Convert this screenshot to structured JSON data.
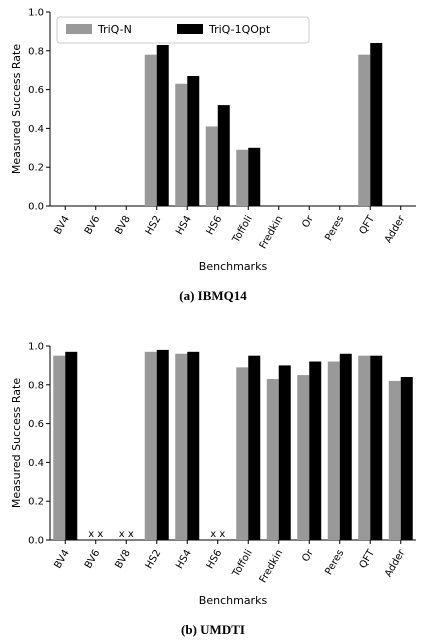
{
  "colors": {
    "triq_n": "#999999",
    "triq_1qopt": "#000000"
  },
  "chart_data": [
    {
      "type": "bar",
      "caption": "(a) IBMQ14",
      "xlabel": "Benchmarks",
      "ylabel": "Measured Success Rate",
      "ylim": [
        0,
        1.0
      ],
      "yticks": [
        "0.0",
        "0.2",
        "0.4",
        "0.6",
        "0.8",
        "1.0"
      ],
      "legend": {
        "placement": "top-left"
      },
      "categories": [
        "BV4",
        "BV6",
        "BV8",
        "HS2",
        "HS4",
        "HS6",
        "Toffoli",
        "Fredkin",
        "Or",
        "Peres",
        "QFT",
        "Adder"
      ],
      "series": [
        {
          "name": "TriQ-N",
          "values": [
            0,
            0,
            0,
            0.78,
            0.63,
            0.41,
            0.29,
            0,
            0,
            0,
            0.78,
            0
          ]
        },
        {
          "name": "TriQ-1QOpt",
          "values": [
            0,
            0,
            0,
            0.83,
            0.67,
            0.52,
            0.3,
            0,
            0,
            0,
            0.84,
            0
          ]
        }
      ],
      "markers": []
    },
    {
      "type": "bar",
      "caption": "(b) UMDTI",
      "xlabel": "Benchmarks",
      "ylabel": "Measured Success Rate",
      "ylim": [
        0,
        1.0
      ],
      "yticks": [
        "0.0",
        "0.2",
        "0.4",
        "0.6",
        "0.8",
        "1.0"
      ],
      "categories": [
        "BV4",
        "BV6",
        "BV8",
        "HS2",
        "HS4",
        "HS6",
        "Toffoli",
        "Fredkin",
        "Or",
        "Peres",
        "QFT",
        "Adder"
      ],
      "series": [
        {
          "name": "TriQ-N",
          "values": [
            0.95,
            null,
            null,
            0.97,
            0.96,
            null,
            0.89,
            0.83,
            0.85,
            0.92,
            0.95,
            0.82
          ]
        },
        {
          "name": "TriQ-1QOpt",
          "values": [
            0.97,
            null,
            null,
            0.98,
            0.97,
            null,
            0.95,
            0.9,
            0.92,
            0.96,
            0.95,
            0.84
          ]
        }
      ],
      "markers": [
        {
          "category": "BV6",
          "text": "x x"
        },
        {
          "category": "BV8",
          "text": "x x"
        },
        {
          "category": "HS6",
          "text": "x x"
        }
      ]
    }
  ]
}
